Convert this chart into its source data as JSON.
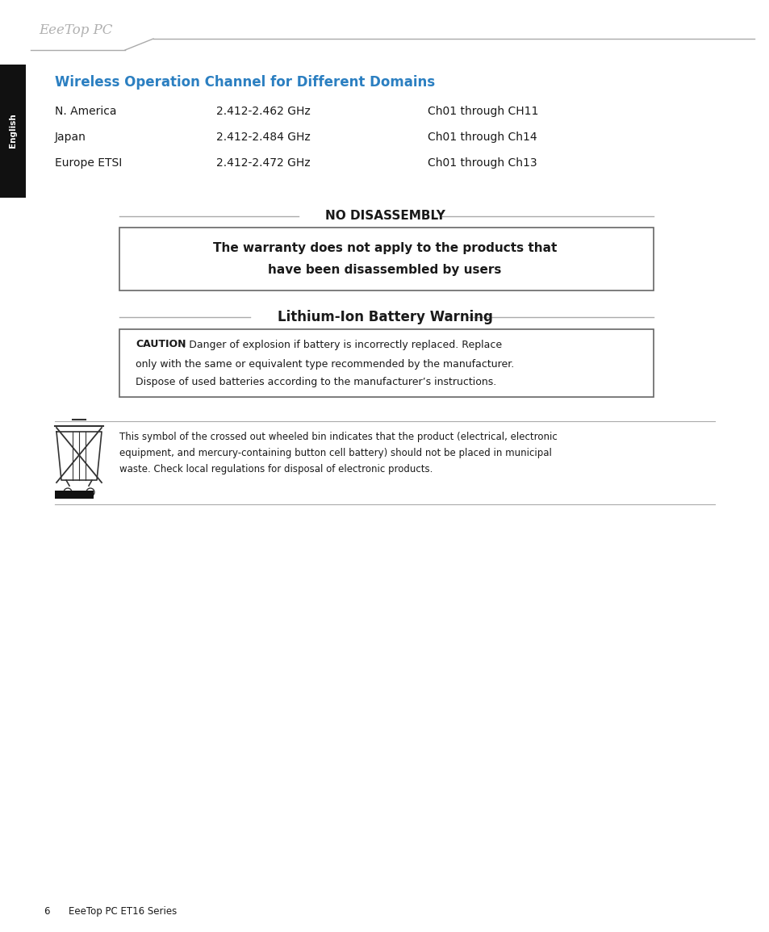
{
  "bg_color": "#ffffff",
  "page_width": 9.54,
  "page_height": 11.55,
  "header_logo_text": "EeeTop PC",
  "section_title": "Wireless Operation Channel for Different Domains",
  "section_title_color": "#2b7fc1",
  "sidebar_label": "English",
  "sidebar_color": "#111111",
  "table_rows": [
    {
      "region": "N. America",
      "freq": "2.412-2.462 GHz",
      "channel": "Ch01 through CH11"
    },
    {
      "region": "Japan",
      "freq": "2.412-2.484 GHz",
      "channel": "Ch01 through Ch14"
    },
    {
      "region": "Europe ETSI",
      "freq": "2.412-2.472 GHz",
      "channel": "Ch01 through Ch13"
    }
  ],
  "no_disassembly_title": "NO DISASSEMBLY",
  "no_disassembly_body_line1": "The warranty does not apply to the products that",
  "no_disassembly_body_line2": "have been disassembled by users",
  "battery_title": "Lithium-Ion Battery Warning",
  "battery_body_bold": "CAUTION",
  "battery_body_rest_line1": ": Danger of explosion if battery is incorrectly replaced. Replace",
  "battery_body_line2": "only with the same or equivalent type recommended by the manufacturer.",
  "battery_body_line3": "Dispose of used batteries according to the manufacturer’s instructions.",
  "weee_text_line1": "This symbol of the crossed out wheeled bin indicates that the product (electrical, electronic",
  "weee_text_line2": "equipment, and mercury-containing button cell battery) should not be placed in municipal",
  "weee_text_line3": "waste. Check local regulations for disposal of electronic products.",
  "footer_text": "6      EeeTop PC ET16 Series",
  "line_color": "#aaaaaa",
  "box_border_color": "#666666",
  "text_color": "#1a1a1a"
}
